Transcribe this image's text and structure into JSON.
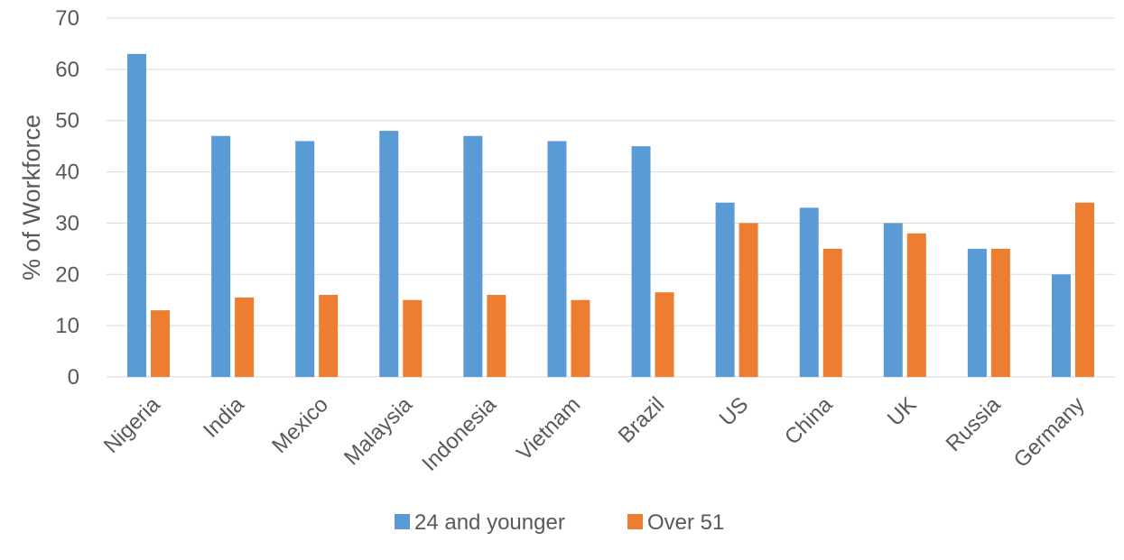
{
  "chart_data": {
    "type": "bar",
    "title": "",
    "xlabel": "",
    "ylabel": "% of Workforce",
    "ylim": [
      0,
      70
    ],
    "yticks": [
      0,
      10,
      20,
      30,
      40,
      50,
      60,
      70
    ],
    "grid": true,
    "legend_position": "bottom",
    "categories": [
      "Nigeria",
      "India",
      "Mexico",
      "Malaysia",
      "Indonesia",
      "Vietnam",
      "Brazil",
      "US",
      "China",
      "UK",
      "Russia",
      "Germany"
    ],
    "series": [
      {
        "name": "24 and younger",
        "color": "#5B9BD5",
        "values": [
          63,
          47,
          46,
          48,
          47,
          46,
          45,
          34,
          33,
          30,
          25,
          20
        ]
      },
      {
        "name": "Over 51",
        "color": "#ED7D31",
        "values": [
          13,
          15.5,
          16,
          15,
          16,
          15,
          16.5,
          30,
          25,
          28,
          25,
          34
        ]
      }
    ]
  }
}
